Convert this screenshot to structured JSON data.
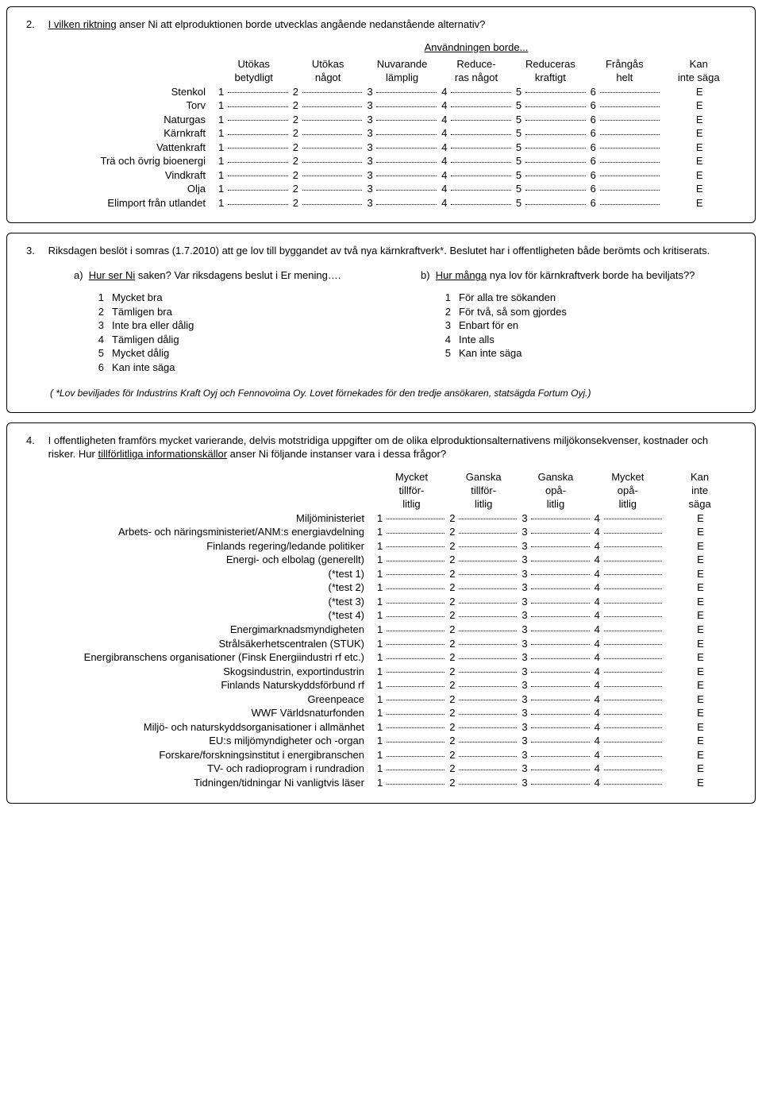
{
  "q2": {
    "number": "2.",
    "lead_underlined": "I vilken riktning",
    "lead_rest": " anser Ni att elproduktionen borde utvecklas angående nedanstående alternativ?",
    "subhead": "Användningen borde...",
    "headers": [
      "Utökas\nbetydligt",
      "Utökas\nnågot",
      "Nuvarande\nlämplig",
      "Reduce-\nras något",
      "Reduceras\nkraftigt",
      "Frångås\nhelt",
      "Kan\ninte säga"
    ],
    "scale": [
      "1",
      "2",
      "3",
      "4",
      "5",
      "6",
      "E"
    ],
    "rows": [
      "Stenkol",
      "Torv",
      "Naturgas",
      "Kärnkraft",
      "Vattenkraft",
      "Trä och övrig bioenergi",
      "Vindkraft",
      "Olja",
      "Elimport från utlandet"
    ]
  },
  "q3": {
    "number": "3.",
    "text": "Riksdagen beslöt i somras (1.7.2010) att ge lov till byggandet av två nya kärnkraftverk*. Beslutet har i offentligheten både berömts och kritiserats.",
    "a": {
      "label": "a)",
      "lead_underlined": "Hur ser Ni",
      "lead_rest": " saken? Var riksdagens beslut i Er mening….",
      "options": [
        "Mycket bra",
        "Tämligen bra",
        "Inte bra eller dålig",
        "Tämligen dålig",
        "Mycket dålig",
        "Kan inte säga"
      ]
    },
    "b": {
      "label": "b)",
      "lead_underlined": "Hur många",
      "lead_rest": " nya lov för kärnkraftverk borde ha beviljats??",
      "options": [
        "För alla tre sökanden",
        "För två, så som gjordes",
        "Enbart för en",
        "Inte alls",
        "Kan inte säga"
      ]
    },
    "footnote": "( *Lov beviljades för Industrins Kraft Oyj och Fennovoima Oy. Lovet förnekades för den tredje ansökaren, statsägda Fortum Oyj.)"
  },
  "q4": {
    "number": "4.",
    "text_pre": "I offentligheten framförs mycket varierande, delvis motstridiga uppgifter om de olika elproduktionsalternativens miljökonsekvenser, kostnader och risker. Hur ",
    "text_underlined": "tillförlitliga informationskällor",
    "text_post": " anser Ni följande instanser vara i dessa frågor?",
    "headers": [
      "Mycket\ntillför-\nlitlig",
      "Ganska\ntillför-\nlitlig",
      "Ganska\nopå-\nlitlig",
      "Mycket\nopå-\nlitlig",
      "Kan\ninte\nsäga"
    ],
    "scale": [
      "1",
      "2",
      "3",
      "4",
      "E"
    ],
    "rows": [
      "Miljöministeriet",
      "Arbets- och näringsministeriet/ANM:s energiavdelning",
      "Finlands regering/ledande politiker",
      "Energi- och elbolag (generellt)",
      "(*test 1)",
      "(*test 2)",
      "(*test 3)",
      "(*test 4)",
      "Energimarknadsmyndigheten",
      "Strålsäkerhetscentralen (STUK)",
      "Energibranschens organisationer (Finsk Energiindustri rf etc.)",
      "Skogsindustrin, exportindustrin",
      "Finlands Naturskyddsförbund rf",
      "Greenpeace",
      "WWF Världsnaturfonden",
      "Miljö- och naturskyddsorganisationer i allmänhet",
      "EU:s miljömyndigheter och -organ",
      "Forskare/forskningsinstitut i energibranschen",
      "TV- och radioprogram i rundradion",
      "Tidningen/tidningar Ni vanligtvis läser"
    ]
  }
}
